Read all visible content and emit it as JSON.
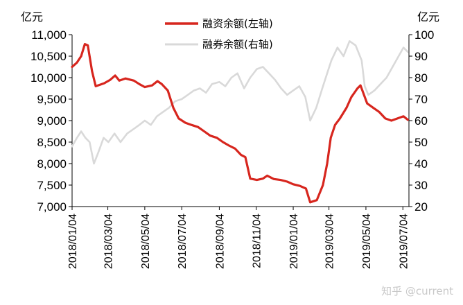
{
  "chart_data": {
    "type": "line",
    "left_axis_unit": "亿元",
    "right_axis_unit": "亿元",
    "left_ylim": [
      7000,
      11000
    ],
    "right_ylim": [
      20,
      100
    ],
    "left_ticks": [
      "11,000",
      "10,500",
      "10,000",
      "9,500",
      "9,000",
      "8,500",
      "8,000",
      "7,500",
      "7,000"
    ],
    "right_ticks": [
      "100",
      "90",
      "80",
      "70",
      "60",
      "50",
      "40",
      "30",
      "20"
    ],
    "x_ticks": [
      "2018/01/04",
      "2018/03/04",
      "2018/05/04",
      "2018/07/04",
      "2018/09/04",
      "2018/11/04",
      "2019/01/04",
      "2019/03/04",
      "2019/05/04",
      "2019/07/04"
    ],
    "legend_position": "top-center",
    "series": [
      {
        "name": "融资余额(左轴)",
        "axis": "left",
        "color": "#d7261e",
        "points": [
          [
            "2018/01/04",
            10250
          ],
          [
            "2018/01/12",
            10350
          ],
          [
            "2018/01/19",
            10500
          ],
          [
            "2018/01/25",
            10780
          ],
          [
            "2018/01/30",
            10750
          ],
          [
            "2018/02/06",
            10150
          ],
          [
            "2018/02/12",
            9800
          ],
          [
            "2018/02/26",
            9870
          ],
          [
            "2018/03/08",
            9950
          ],
          [
            "2018/03/16",
            10050
          ],
          [
            "2018/03/23",
            9930
          ],
          [
            "2018/04/02",
            9980
          ],
          [
            "2018/04/16",
            9930
          ],
          [
            "2018/04/25",
            9850
          ],
          [
            "2018/05/04",
            9780
          ],
          [
            "2018/05/16",
            9820
          ],
          [
            "2018/05/25",
            9920
          ],
          [
            "2018/06/01",
            9850
          ],
          [
            "2018/06/11",
            9700
          ],
          [
            "2018/06/20",
            9300
          ],
          [
            "2018/06/29",
            9050
          ],
          [
            "2018/07/10",
            8950
          ],
          [
            "2018/07/20",
            8900
          ],
          [
            "2018/07/31",
            8850
          ],
          [
            "2018/08/10",
            8750
          ],
          [
            "2018/08/20",
            8650
          ],
          [
            "2018/08/31",
            8600
          ],
          [
            "2018/09/10",
            8500
          ],
          [
            "2018/09/20",
            8420
          ],
          [
            "2018/09/30",
            8350
          ],
          [
            "2018/10/10",
            8200
          ],
          [
            "2018/10/17",
            8150
          ],
          [
            "2018/10/25",
            7650
          ],
          [
            "2018/11/05",
            7620
          ],
          [
            "2018/11/15",
            7650
          ],
          [
            "2018/11/22",
            7720
          ],
          [
            "2018/12/03",
            7640
          ],
          [
            "2018/12/14",
            7620
          ],
          [
            "2018/12/25",
            7580
          ],
          [
            "2019/01/04",
            7520
          ],
          [
            "2019/01/15",
            7480
          ],
          [
            "2019/01/25",
            7420
          ],
          [
            "2019/02/01",
            7100
          ],
          [
            "2019/02/12",
            7150
          ],
          [
            "2019/02/22",
            7500
          ],
          [
            "2019/03/01",
            8000
          ],
          [
            "2019/03/07",
            8600
          ],
          [
            "2019/03/14",
            8900
          ],
          [
            "2019/03/22",
            9050
          ],
          [
            "2019/04/02",
            9300
          ],
          [
            "2019/04/10",
            9550
          ],
          [
            "2019/04/20",
            9750
          ],
          [
            "2019/04/25",
            9820
          ],
          [
            "2019/05/06",
            9400
          ],
          [
            "2019/05/16",
            9300
          ],
          [
            "2019/05/26",
            9200
          ],
          [
            "2019/06/05",
            9050
          ],
          [
            "2019/06/15",
            9000
          ],
          [
            "2019/06/25",
            9050
          ],
          [
            "2019/07/05",
            9100
          ],
          [
            "2019/07/12",
            9020
          ]
        ]
      },
      {
        "name": "融券余额(右轴)",
        "axis": "right",
        "color": "#d9d9d9",
        "points": [
          [
            "2018/01/04",
            48
          ],
          [
            "2018/01/12",
            52
          ],
          [
            "2018/01/19",
            55
          ],
          [
            "2018/01/26",
            52
          ],
          [
            "2018/02/02",
            50
          ],
          [
            "2018/02/09",
            40
          ],
          [
            "2018/02/16",
            45
          ],
          [
            "2018/02/25",
            52
          ],
          [
            "2018/03/05",
            50
          ],
          [
            "2018/03/15",
            54
          ],
          [
            "2018/03/25",
            50
          ],
          [
            "2018/04/05",
            54
          ],
          [
            "2018/04/15",
            56
          ],
          [
            "2018/04/25",
            58
          ],
          [
            "2018/05/04",
            60
          ],
          [
            "2018/05/14",
            58
          ],
          [
            "2018/05/24",
            62
          ],
          [
            "2018/06/03",
            64
          ],
          [
            "2018/06/13",
            66
          ],
          [
            "2018/06/23",
            69
          ],
          [
            "2018/07/04",
            70
          ],
          [
            "2018/07/14",
            72
          ],
          [
            "2018/07/24",
            74
          ],
          [
            "2018/08/03",
            75
          ],
          [
            "2018/08/13",
            73
          ],
          [
            "2018/08/23",
            77
          ],
          [
            "2018/09/04",
            78
          ],
          [
            "2018/09/14",
            76
          ],
          [
            "2018/09/24",
            80
          ],
          [
            "2018/10/04",
            82
          ],
          [
            "2018/10/15",
            75
          ],
          [
            "2018/10/25",
            80
          ],
          [
            "2018/11/05",
            84
          ],
          [
            "2018/11/15",
            85
          ],
          [
            "2018/11/25",
            82
          ],
          [
            "2018/12/05",
            79
          ],
          [
            "2018/12/15",
            75
          ],
          [
            "2018/12/25",
            72
          ],
          [
            "2019/01/04",
            74
          ],
          [
            "2019/01/14",
            76
          ],
          [
            "2019/01/24",
            71
          ],
          [
            "2019/02/01",
            60
          ],
          [
            "2019/02/11",
            66
          ],
          [
            "2019/02/21",
            75
          ],
          [
            "2019/03/01",
            82
          ],
          [
            "2019/03/08",
            88
          ],
          [
            "2019/03/18",
            94
          ],
          [
            "2019/03/28",
            90
          ],
          [
            "2019/04/07",
            97
          ],
          [
            "2019/04/17",
            95
          ],
          [
            "2019/04/27",
            88
          ],
          [
            "2019/05/02",
            76
          ],
          [
            "2019/05/08",
            72
          ],
          [
            "2019/05/18",
            74
          ],
          [
            "2019/05/28",
            77
          ],
          [
            "2019/06/07",
            80
          ],
          [
            "2019/06/17",
            85
          ],
          [
            "2019/06/27",
            90
          ],
          [
            "2019/07/05",
            94
          ],
          [
            "2019/07/12",
            92
          ]
        ]
      }
    ]
  },
  "watermark": "知乎 @current"
}
